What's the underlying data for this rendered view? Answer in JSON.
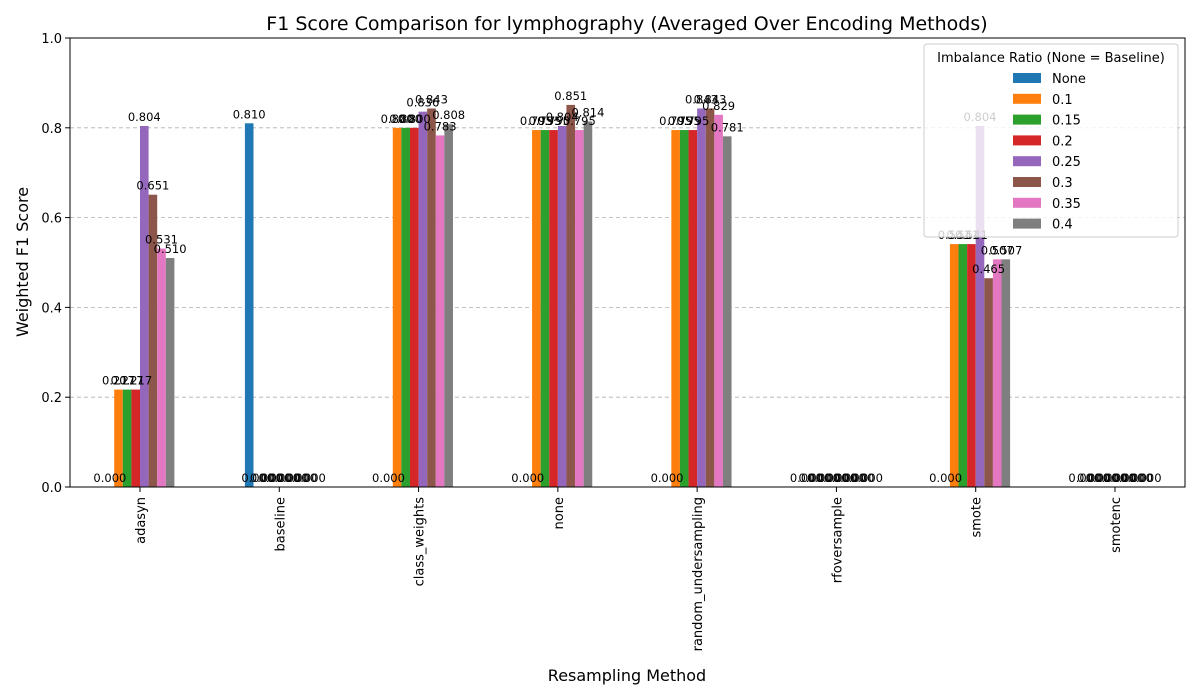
{
  "chart_data": {
    "type": "bar",
    "title": "F1 Score Comparison for lymphography (Averaged Over Encoding Methods)",
    "xlabel": "Resampling Method",
    "ylabel": "Weighted F1 Score",
    "ylim": [
      0,
      1.0
    ],
    "yticks": [
      "0.0",
      "0.2",
      "0.4",
      "0.6",
      "0.8",
      "1.0"
    ],
    "grid": "y-dashed",
    "legend": {
      "title": "Imbalance Ratio (None = Baseline)",
      "placement": "top-right"
    },
    "categories": [
      "adasyn",
      "baseline",
      "class_weights",
      "none",
      "random_undersampling",
      "rfoversample",
      "smote",
      "smotenc"
    ],
    "series": [
      {
        "name": "None",
        "color": "#1f77b4",
        "values": [
          0.0,
          0.81,
          0.0,
          0.0,
          0.0,
          0.0,
          0.0,
          0.0
        ]
      },
      {
        "name": "0.1",
        "color": "#ff7f0e",
        "values": [
          0.217,
          0.0,
          0.8,
          0.795,
          0.795,
          0.0,
          0.541,
          0.0
        ]
      },
      {
        "name": "0.15",
        "color": "#2ca02c",
        "values": [
          0.217,
          0.0,
          0.8,
          0.795,
          0.795,
          0.0,
          0.541,
          0.0
        ]
      },
      {
        "name": "0.2",
        "color": "#d62728",
        "values": [
          0.217,
          0.0,
          0.8,
          0.795,
          0.795,
          0.0,
          0.541,
          0.0
        ]
      },
      {
        "name": "0.25",
        "color": "#9467bd",
        "values": [
          0.804,
          0.0,
          0.836,
          0.804,
          0.843,
          0.0,
          0.804,
          0.0
        ]
      },
      {
        "name": "0.3",
        "color": "#8c564b",
        "values": [
          0.651,
          0.0,
          0.843,
          0.851,
          0.843,
          0.0,
          0.465,
          0.0
        ]
      },
      {
        "name": "0.35",
        "color": "#e377c2",
        "values": [
          0.531,
          0.0,
          0.783,
          0.795,
          0.829,
          0.0,
          0.507,
          0.0
        ]
      },
      {
        "name": "0.4",
        "color": "#7f7f7f",
        "values": [
          0.51,
          0.0,
          0.808,
          0.814,
          0.781,
          0.0,
          0.507,
          0.0
        ]
      }
    ]
  }
}
